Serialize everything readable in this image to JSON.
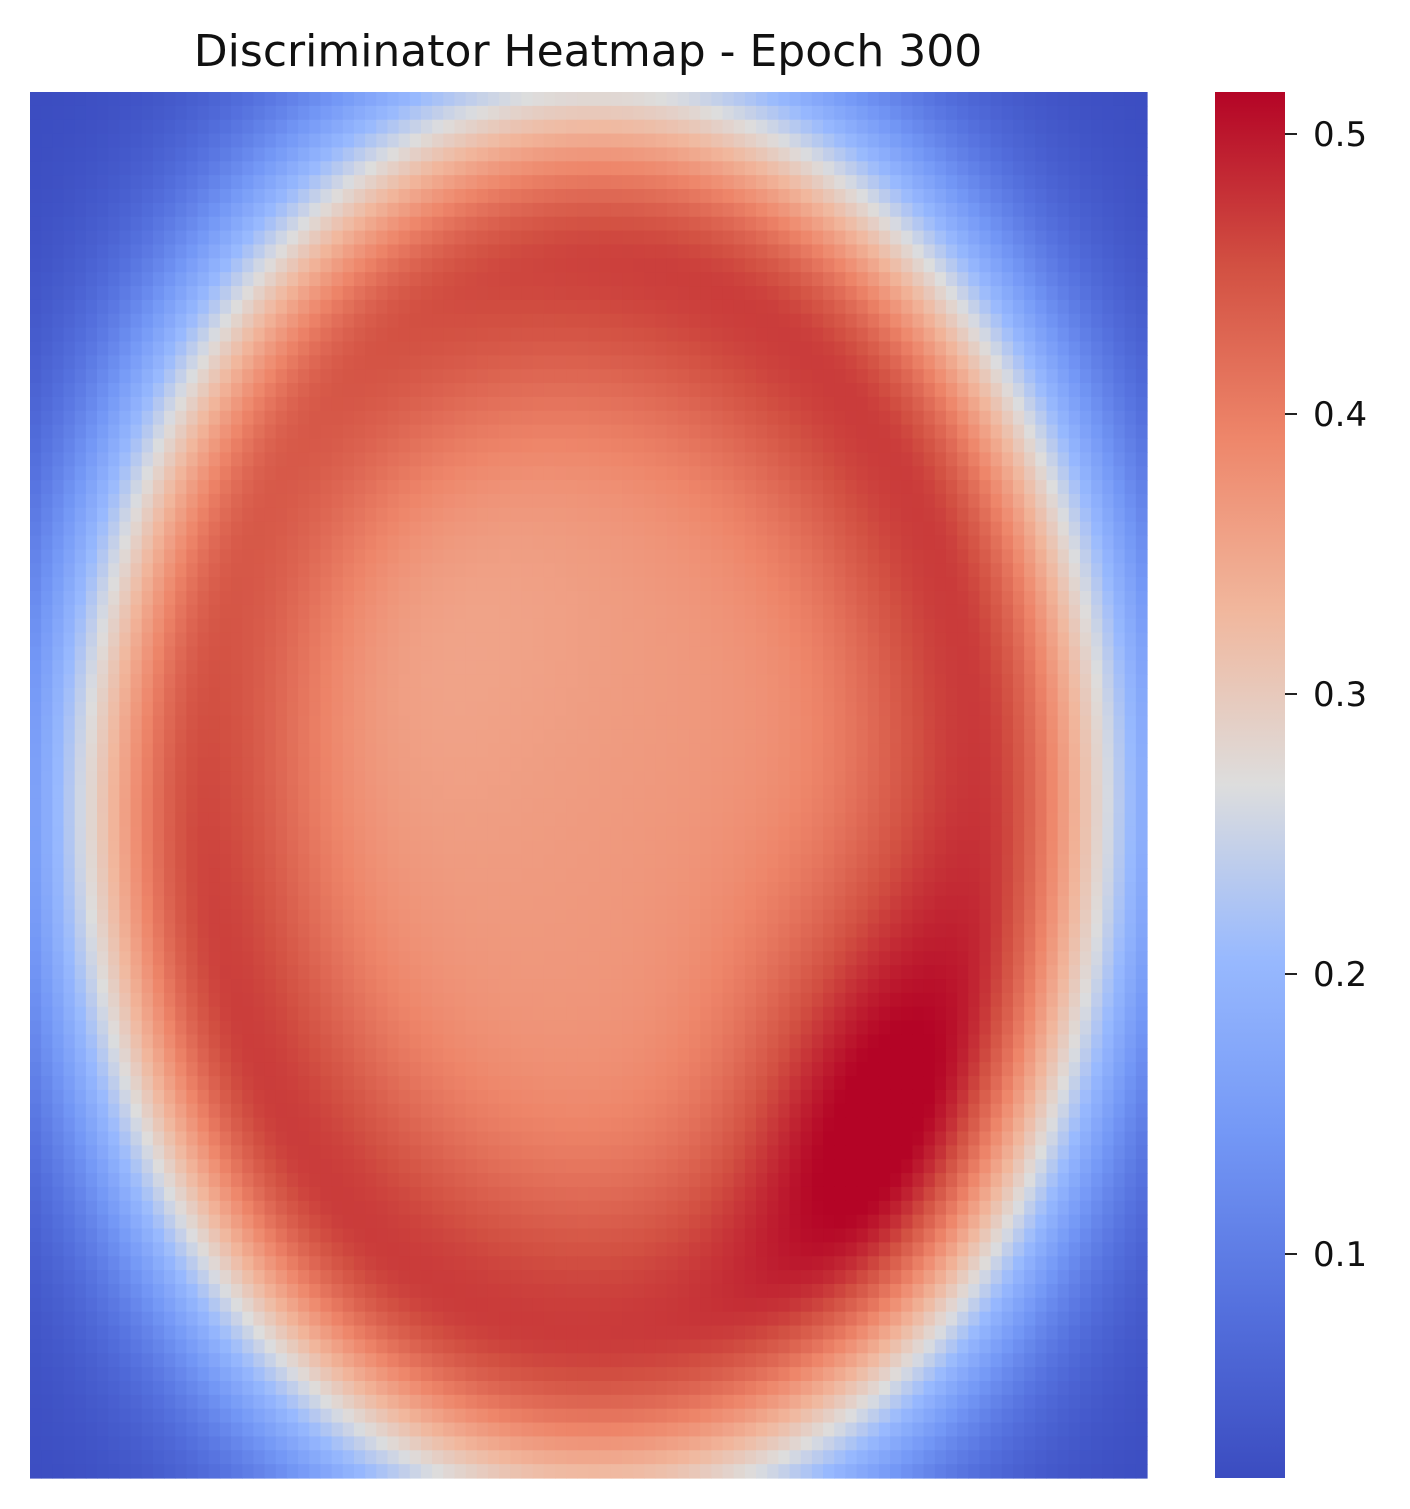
{
  "chart_data": {
    "type": "heatmap",
    "title": "Discriminator Heatmap - Epoch 300",
    "xlabel": "",
    "ylabel": "",
    "colormap": "coolwarm",
    "value_range": [
      0.02,
      0.515
    ],
    "colorbar": {
      "ticks": [
        0.1,
        0.2,
        0.3,
        0.4,
        0.5
      ],
      "tick_labels": [
        "0.1",
        "0.2",
        "0.3",
        "0.4",
        "0.5"
      ],
      "placement": "right"
    },
    "grid": {
      "columns": 100,
      "rows": 100,
      "ellipse_center": [
        0.505,
        0.51
      ],
      "ellipse_radii": [
        0.345,
        0.385
      ],
      "ellipse_width": 0.17,
      "ring_peak_value": 0.5,
      "interior_value": 0.37,
      "background_value": 0.02,
      "hotspot_center": [
        0.74,
        0.72
      ],
      "hotspot_value": 0.515
    },
    "annotations": {
      "center_value": "≈0.37",
      "ring_value": "≈0.47–0.51",
      "corner_value": "≈0.03"
    }
  }
}
